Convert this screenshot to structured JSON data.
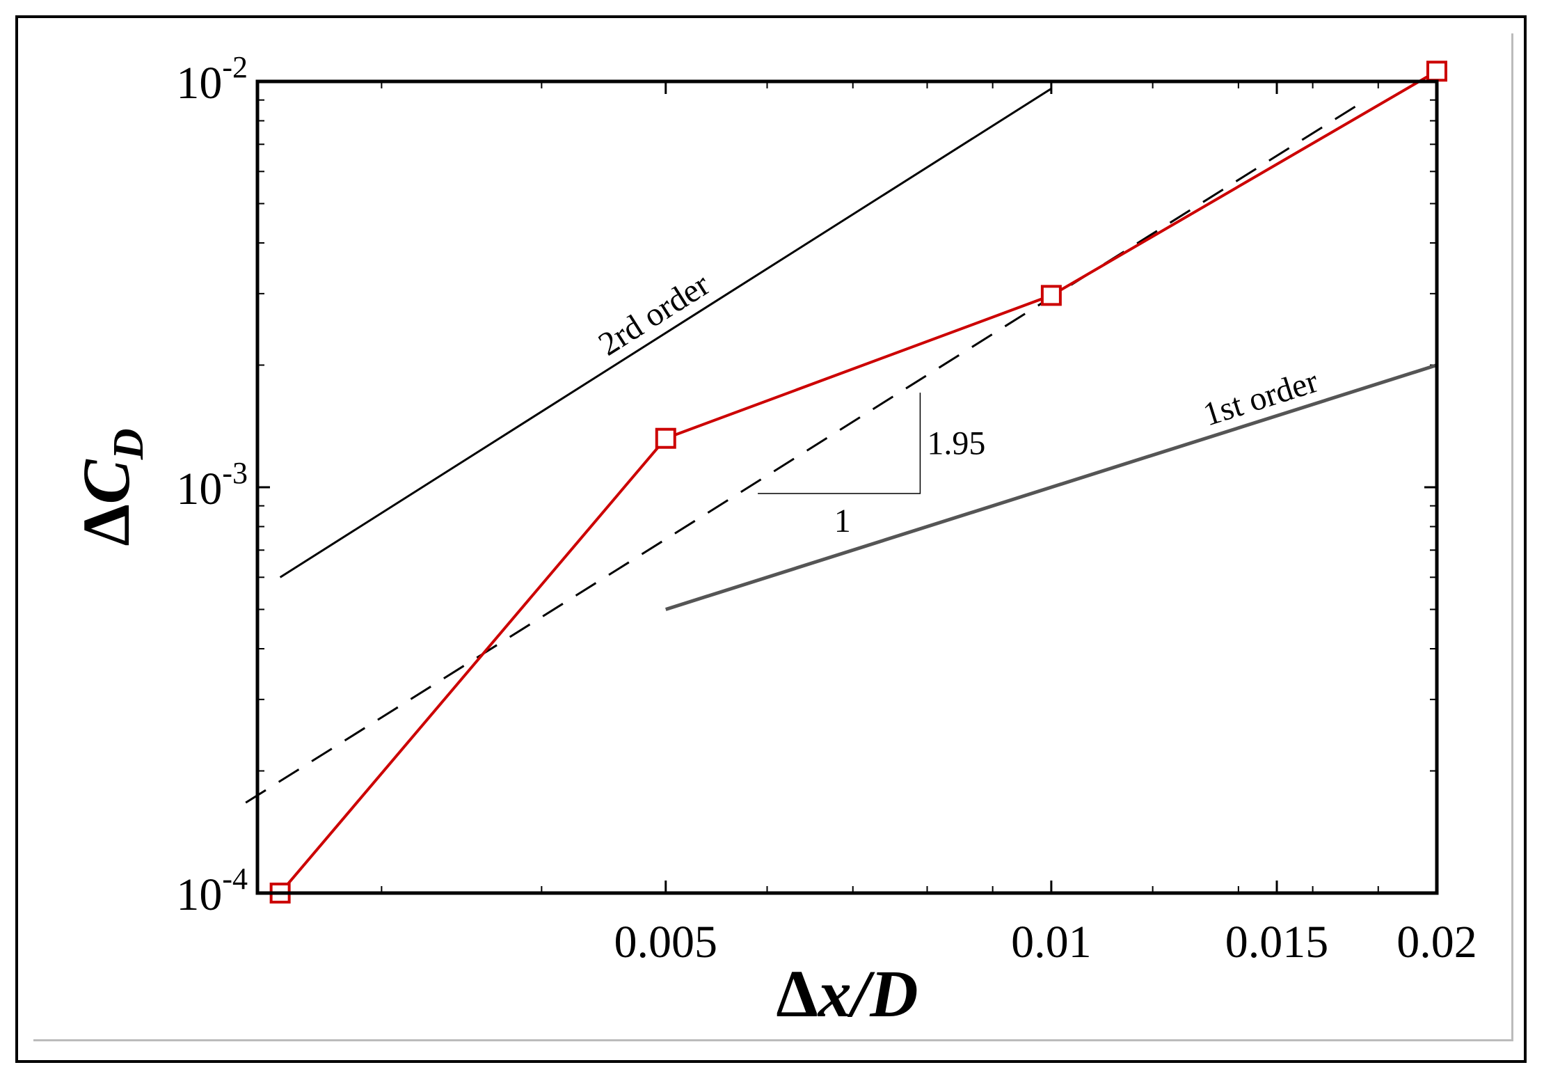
{
  "chart_data": {
    "type": "line",
    "xscale": "log",
    "yscale": "log",
    "xlim": [
      0.0024,
      0.02
    ],
    "ylim": [
      0.0001,
      0.01
    ],
    "xlabel": "Δx/D",
    "ylabel": "ΔC_D",
    "xlabel_parts": {
      "delta": "Δ",
      "var": "x",
      "sep": "/",
      "ref": "D"
    },
    "ylabel_parts": {
      "delta": "Δ",
      "var": "C",
      "sub": "D"
    },
    "xticks": [
      0.005,
      0.01,
      0.015,
      0.02
    ],
    "xtick_labels": [
      "0.005",
      "0.01",
      "0.015",
      "0.02"
    ],
    "xminor_ticks": [
      0.003,
      0.004,
      0.006,
      0.007,
      0.008,
      0.009,
      0.012,
      0.014,
      0.016,
      0.018
    ],
    "yticks": [
      0.0001,
      0.001,
      0.01
    ],
    "ytick_labels": [
      {
        "base": "10",
        "exp": "-4"
      },
      {
        "base": "10",
        "exp": "-3"
      },
      {
        "base": "10",
        "exp": "-2"
      }
    ],
    "yminor_ticks": [
      0.0002,
      0.0003,
      0.0004,
      0.0005,
      0.0006,
      0.0007,
      0.0008,
      0.0009,
      0.002,
      0.003,
      0.004,
      0.005,
      0.006,
      0.007,
      0.008,
      0.009
    ],
    "grid": false,
    "series": [
      {
        "style": "solid-markers",
        "color": "#cc0000",
        "marker": "square",
        "x": [
          0.0025,
          0.005,
          0.01,
          0.02
        ],
        "y": [
          0.0001,
          0.00132,
          0.00297,
          0.0106
        ]
      },
      {
        "style": "dashed",
        "color": "#000000",
        "x": [
          0.00235,
          0.0175
        ],
        "y": [
          0.000167,
          0.0089
        ]
      }
    ],
    "reference_lines": [
      {
        "label": "2rd order",
        "color": "#000000",
        "x": [
          0.0025,
          0.01
        ],
        "y": [
          0.0006,
          0.0096
        ]
      },
      {
        "label": "1st order",
        "color": "#555555",
        "x": [
          0.005,
          0.02
        ],
        "y": [
          0.0005,
          0.002
        ]
      }
    ],
    "slope_triangle": {
      "run_label": "1",
      "rise_label": "1.95",
      "x": [
        0.0059,
        0.0079
      ],
      "y": [
        0.000965,
        0.00171
      ]
    }
  }
}
